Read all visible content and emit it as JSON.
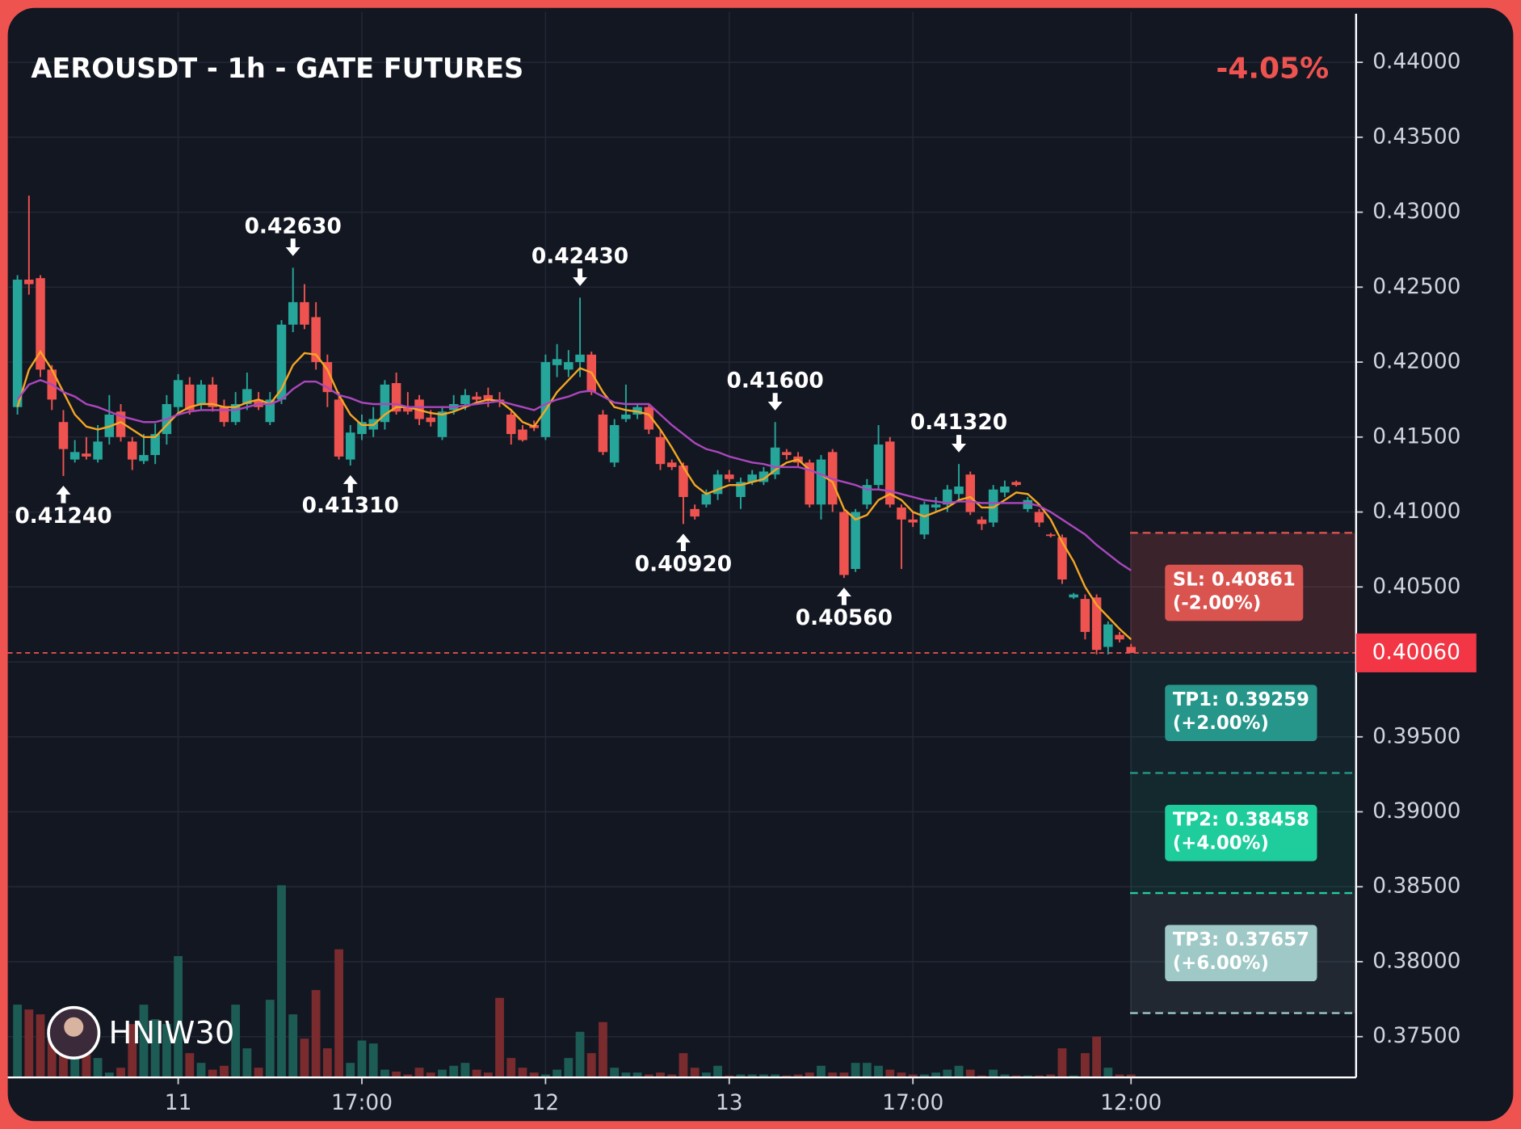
{
  "chart_data": {
    "type": "candlestick",
    "title": "AEROUSDT - 1h - GATE FUTURES",
    "change": "-4.05%",
    "watermark": "HNIW30",
    "categories": [
      null,
      null,
      null,
      null,
      null,
      null,
      null,
      null,
      null,
      null,
      null,
      null,
      null,
      null,
      "11",
      null,
      null,
      null,
      null,
      null,
      null,
      null,
      null,
      null,
      null,
      null,
      null,
      null,
      null,
      null,
      "17:00",
      null,
      null,
      null,
      null,
      null,
      null,
      null,
      null,
      null,
      null,
      null,
      null,
      null,
      null,
      null,
      "12",
      null,
      null,
      null,
      null,
      null,
      null,
      null,
      null,
      null,
      null,
      null,
      null,
      null,
      null,
      null,
      "13",
      null,
      null,
      null,
      null,
      null,
      null,
      null,
      null,
      null,
      null,
      null,
      null,
      null,
      null,
      null,
      "17:00",
      null,
      null,
      null,
      null,
      null,
      null,
      null,
      null,
      null,
      null,
      null,
      null,
      null,
      null,
      null,
      null,
      null,
      null,
      "12:00"
    ],
    "open": [
      0.417,
      0.4255,
      0.4256,
      0.4195,
      0.416,
      0.4135,
      0.4139,
      0.4135,
      0.415,
      0.4167,
      0.4147,
      0.4134,
      0.4138,
      0.4152,
      0.417,
      0.4185,
      0.4172,
      0.4185,
      0.417,
      0.416,
      0.4172,
      0.4175,
      0.416,
      0.4175,
      0.4225,
      0.424,
      0.423,
      0.42,
      0.4175,
      0.4135,
      0.4152,
      0.4155,
      0.416,
      0.4186,
      0.417,
      0.4175,
      0.4163,
      0.415,
      0.4168,
      0.4172,
      0.4177,
      0.4178,
      0.4175,
      0.4165,
      0.4155,
      0.4158,
      0.415,
      0.4198,
      0.4195,
      0.42,
      0.4205,
      0.4165,
      0.4133,
      0.4162,
      0.4165,
      0.417,
      0.415,
      0.4133,
      0.4131,
      0.4102,
      0.4105,
      0.4112,
      0.4125,
      0.411,
      0.412,
      0.412,
      0.4125,
      0.414,
      0.4137,
      0.4133,
      0.4105,
      0.414,
      0.41,
      0.4062,
      0.4105,
      0.4118,
      0.4147,
      0.4103,
      0.4095,
      0.4085,
      0.4103,
      0.4105,
      0.4112,
      0.4125,
      0.4095,
      0.4093,
      0.4113,
      0.412,
      0.4102,
      0.41,
      0.4085,
      0.4083,
      0.4043,
      0.4042,
      0.4043,
      0.401,
      0.4018,
      0.401
    ],
    "high": [
      0.4258,
      0.4311,
      0.4258,
      0.4198,
      0.4168,
      0.4148,
      0.415,
      0.4158,
      0.4178,
      0.4172,
      0.415,
      0.4152,
      0.4159,
      0.4178,
      0.4192,
      0.419,
      0.4188,
      0.419,
      0.4175,
      0.418,
      0.4193,
      0.418,
      0.418,
      0.4228,
      0.4263,
      0.4252,
      0.424,
      0.4205,
      0.418,
      0.4158,
      0.4165,
      0.417,
      0.4188,
      0.4193,
      0.418,
      0.4178,
      0.4168,
      0.417,
      0.4178,
      0.4182,
      0.418,
      0.4183,
      0.418,
      0.4167,
      0.4158,
      0.4161,
      0.4205,
      0.4212,
      0.4208,
      0.4243,
      0.4207,
      0.4168,
      0.4162,
      0.4185,
      0.4172,
      0.4172,
      0.4155,
      0.4135,
      0.4133,
      0.4105,
      0.4115,
      0.4128,
      0.4128,
      0.4123,
      0.4128,
      0.413,
      0.416,
      0.4142,
      0.414,
      0.4135,
      0.4138,
      0.4142,
      0.4102,
      0.4102,
      0.4122,
      0.4158,
      0.415,
      0.4105,
      0.41,
      0.4107,
      0.411,
      0.4118,
      0.4132,
      0.4127,
      0.4097,
      0.4118,
      0.4121,
      0.4121,
      0.411,
      0.4102,
      0.4086,
      0.4085,
      0.4046,
      0.4045,
      0.4045,
      0.4027,
      0.402,
      0.4012
    ],
    "low": [
      0.4165,
      0.4245,
      0.419,
      0.4168,
      0.4124,
      0.4133,
      0.4135,
      0.4133,
      0.4145,
      0.4147,
      0.4128,
      0.4132,
      0.4132,
      0.4145,
      0.4165,
      0.4165,
      0.4168,
      0.4167,
      0.4157,
      0.4158,
      0.4168,
      0.4168,
      0.4158,
      0.4172,
      0.422,
      0.4222,
      0.4195,
      0.417,
      0.4135,
      0.4131,
      0.4148,
      0.415,
      0.4155,
      0.4165,
      0.4165,
      0.4158,
      0.4157,
      0.4148,
      0.4165,
      0.4168,
      0.4172,
      0.417,
      0.417,
      0.4145,
      0.4147,
      0.4154,
      0.4148,
      0.419,
      0.419,
      0.419,
      0.4178,
      0.4138,
      0.413,
      0.416,
      0.4162,
      0.4152,
      0.4128,
      0.4128,
      0.4092,
      0.4095,
      0.4103,
      0.4108,
      0.412,
      0.4102,
      0.4118,
      0.4118,
      0.4122,
      0.4135,
      0.413,
      0.4103,
      0.4095,
      0.41,
      0.4056,
      0.406,
      0.4102,
      0.4115,
      0.4103,
      0.4062,
      0.409,
      0.4082,
      0.41,
      0.41,
      0.4108,
      0.4098,
      0.4088,
      0.409,
      0.411,
      0.4117,
      0.41,
      0.409,
      0.4083,
      0.4052,
      0.4042,
      0.4015,
      0.4005,
      0.4005,
      0.4013,
      0.4006
    ],
    "close": [
      0.4255,
      0.4252,
      0.4195,
      0.4175,
      0.4142,
      0.414,
      0.4137,
      0.4147,
      0.4165,
      0.415,
      0.4135,
      0.4138,
      0.4152,
      0.4172,
      0.4188,
      0.4168,
      0.4185,
      0.417,
      0.416,
      0.4172,
      0.4182,
      0.417,
      0.4175,
      0.4225,
      0.424,
      0.4225,
      0.42,
      0.418,
      0.4137,
      0.4153,
      0.416,
      0.4162,
      0.4185,
      0.4167,
      0.4167,
      0.4162,
      0.416,
      0.4167,
      0.4172,
      0.4178,
      0.4175,
      0.4175,
      0.4174,
      0.4152,
      0.4148,
      0.4156,
      0.42,
      0.4202,
      0.42,
      0.4205,
      0.418,
      0.414,
      0.4158,
      0.4165,
      0.417,
      0.4155,
      0.4132,
      0.413,
      0.411,
      0.4097,
      0.4112,
      0.4125,
      0.4122,
      0.412,
      0.4125,
      0.4127,
      0.4143,
      0.4138,
      0.4133,
      0.4105,
      0.4135,
      0.4105,
      0.4058,
      0.41,
      0.4118,
      0.4145,
      0.4105,
      0.4095,
      0.4093,
      0.4105,
      0.4105,
      0.4115,
      0.4117,
      0.41,
      0.4092,
      0.4115,
      0.4117,
      0.4118,
      0.4108,
      0.4093,
      0.4084,
      0.4055,
      0.4045,
      0.402,
      0.4008,
      0.4025,
      0.4015,
      0.4006
    ],
    "volume": [
      75,
      70,
      65,
      40,
      50,
      40,
      30,
      20,
      5,
      10,
      55,
      75,
      60,
      55,
      125,
      25,
      15,
      8,
      12,
      75,
      30,
      10,
      80,
      198,
      65,
      40,
      90,
      30,
      132,
      15,
      38,
      35,
      8,
      6,
      3,
      10,
      5,
      8,
      12,
      15,
      8,
      5,
      82,
      20,
      10,
      5,
      3,
      8,
      20,
      47,
      25,
      57,
      10,
      5,
      5,
      3,
      5,
      3,
      25,
      10,
      5,
      12,
      2,
      3,
      3,
      3,
      3,
      2,
      3,
      5,
      12,
      5,
      5,
      15,
      15,
      12,
      8,
      5,
      3,
      3,
      5,
      8,
      12,
      8,
      2,
      8,
      3,
      2,
      2,
      2,
      3,
      30,
      2,
      25,
      42,
      10,
      3,
      3
    ],
    "vlim": [
      0,
      200
    ],
    "lines": [
      {
        "color": "#f5a623",
        "values": [
          0.417,
          0.4195,
          0.4207,
          0.4195,
          0.418,
          0.4165,
          0.4157,
          0.4155,
          0.4157,
          0.416,
          0.4155,
          0.415,
          0.415,
          0.4158,
          0.4166,
          0.417,
          0.4172,
          0.4172,
          0.417,
          0.417,
          0.4173,
          0.4175,
          0.4172,
          0.4182,
          0.4198,
          0.4206,
          0.4205,
          0.4195,
          0.4178,
          0.4165,
          0.4158,
          0.4158,
          0.4165,
          0.417,
          0.417,
          0.4168,
          0.4166,
          0.4165,
          0.4167,
          0.417,
          0.4173,
          0.4175,
          0.4174,
          0.4168,
          0.416,
          0.4157,
          0.4168,
          0.418,
          0.4188,
          0.4196,
          0.4193,
          0.418,
          0.417,
          0.4168,
          0.4167,
          0.4165,
          0.4155,
          0.4143,
          0.413,
          0.4118,
          0.4112,
          0.4115,
          0.4118,
          0.4118,
          0.412,
          0.4122,
          0.4128,
          0.4133,
          0.4135,
          0.4128,
          0.4125,
          0.412,
          0.4102,
          0.4095,
          0.4098,
          0.4108,
          0.4112,
          0.4108,
          0.41,
          0.4097,
          0.41,
          0.4103,
          0.4108,
          0.411,
          0.4103,
          0.4103,
          0.4108,
          0.4113,
          0.4112,
          0.4105,
          0.4095,
          0.408,
          0.4067,
          0.405,
          0.4038,
          0.403,
          0.4022,
          0.4015
        ]
      },
      {
        "color": "#ab47bc",
        "values": [
          0.4175,
          0.4185,
          0.4188,
          0.4185,
          0.418,
          0.4177,
          0.4172,
          0.417,
          0.4167,
          0.4164,
          0.4162,
          0.416,
          0.416,
          0.4162,
          0.4165,
          0.4167,
          0.4168,
          0.4168,
          0.4168,
          0.4168,
          0.417,
          0.4172,
          0.4172,
          0.4175,
          0.4182,
          0.4187,
          0.4187,
          0.4183,
          0.4178,
          0.4176,
          0.4173,
          0.4172,
          0.4172,
          0.4172,
          0.417,
          0.417,
          0.417,
          0.417,
          0.417,
          0.4171,
          0.4172,
          0.4173,
          0.4174,
          0.4172,
          0.417,
          0.4168,
          0.4172,
          0.4175,
          0.4177,
          0.418,
          0.4181,
          0.4177,
          0.4173,
          0.4172,
          0.4172,
          0.4172,
          0.4165,
          0.4158,
          0.4152,
          0.4146,
          0.4142,
          0.414,
          0.4137,
          0.4135,
          0.4133,
          0.4132,
          0.413,
          0.413,
          0.413,
          0.4128,
          0.4125,
          0.4122,
          0.412,
          0.4118,
          0.4115,
          0.4115,
          0.4114,
          0.4112,
          0.411,
          0.4108,
          0.4107,
          0.4106,
          0.4107,
          0.4107,
          0.4106,
          0.4106,
          0.4106,
          0.4106,
          0.4106,
          0.4104,
          0.41,
          0.4095,
          0.409,
          0.4085,
          0.4078,
          0.4072,
          0.4066,
          0.4061
        ]
      }
    ],
    "up_color": "#26a69a",
    "down_color": "#ef5350",
    "up_volume_color": "#1d5b55",
    "down_volume_color": "#7a2b2e",
    "ylim": [
      0.37228,
      0.44337
    ],
    "yticks": [
      {
        "value": 0.44,
        "label": "0.44000"
      },
      {
        "value": 0.435,
        "label": "0.43500"
      },
      {
        "value": 0.43,
        "label": "0.43000"
      },
      {
        "value": 0.425,
        "label": "0.42500"
      },
      {
        "value": 0.42,
        "label": "0.42000"
      },
      {
        "value": 0.415,
        "label": "0.41500"
      },
      {
        "value": 0.41,
        "label": "0.41000"
      },
      {
        "value": 0.405,
        "label": "0.40500"
      },
      {
        "value": 0.4,
        "label": "0.40000"
      },
      {
        "value": 0.395,
        "label": "0.39500"
      },
      {
        "value": 0.39,
        "label": "0.39000"
      },
      {
        "value": 0.385,
        "label": "0.38500"
      },
      {
        "value": 0.38,
        "label": "0.38000"
      },
      {
        "value": 0.375,
        "label": "0.37500"
      }
    ],
    "grid": true,
    "last_price": {
      "value": 0.4006,
      "label": "0.40060"
    },
    "annotations": [
      {
        "value": 0.4124,
        "label": "0.41240"
      },
      {
        "value": 0.4263,
        "label": "0.42630"
      },
      {
        "value": 0.4131,
        "label": "0.41310"
      },
      {
        "value": 0.4243,
        "label": "0.42430"
      },
      {
        "value": 0.4092,
        "label": "0.40920"
      },
      {
        "value": 0.416,
        "label": "0.41600"
      },
      {
        "value": 0.4056,
        "label": "0.40560"
      },
      {
        "value": 0.4132,
        "label": "0.41320"
      }
    ],
    "levels": [
      {
        "name": "SL: 0.40861",
        "note": "(-2.00%)",
        "value": 0.40861,
        "color": "#d9534f"
      },
      {
        "name": "TP1: 0.39259",
        "note": "(+2.00%)",
        "value": 0.39259,
        "color": "#26968a"
      },
      {
        "name": "TP2: 0.38458",
        "note": "(+4.00%)",
        "value": 0.38458,
        "color": "#1fcc9c"
      },
      {
        "name": "TP3: 0.37657",
        "note": "(+6.00%)",
        "value": 0.37657,
        "color": "#9fc9c6"
      }
    ]
  }
}
